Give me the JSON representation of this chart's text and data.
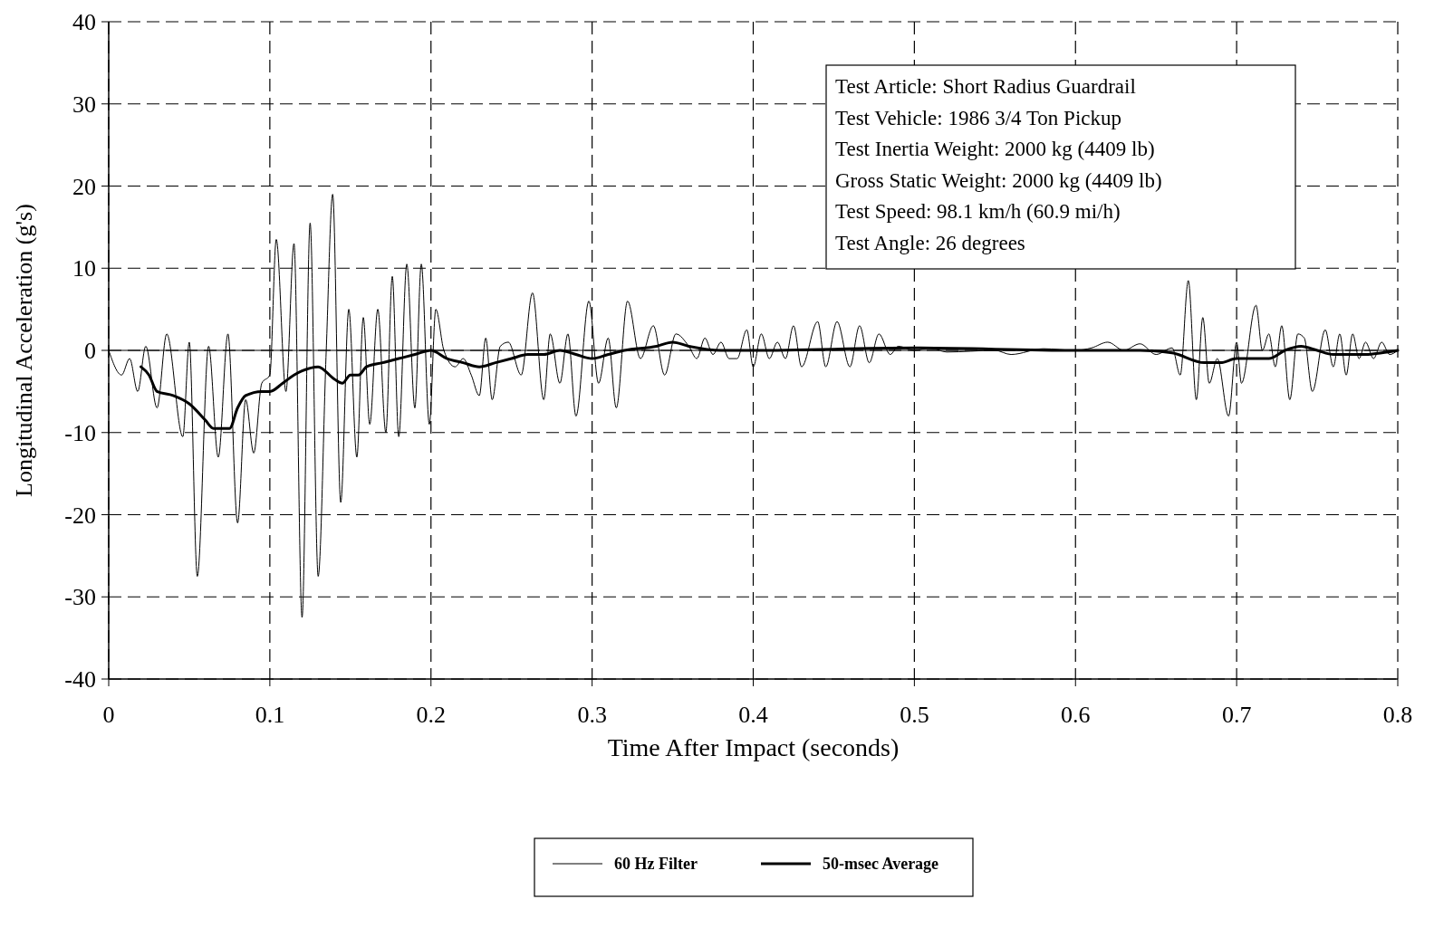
{
  "chart_data": {
    "type": "line",
    "xlabel": "Time After Impact (seconds)",
    "ylabel": "Longitudinal Acceleration (g's)",
    "xlim": [
      0,
      0.8
    ],
    "xticks": [
      0,
      0.1,
      0.2,
      0.3,
      0.4,
      0.5,
      0.6,
      0.7,
      0.8
    ],
    "ylim": [
      -40,
      40
    ],
    "yticks": [
      -40,
      -30,
      -20,
      -10,
      0,
      10,
      20,
      30,
      40
    ],
    "grid": true,
    "legend": "bottom",
    "line_style": "solid",
    "ref_lines": [
      {
        "axis": "y",
        "value": 0,
        "label": null,
        "color": "#000000",
        "line_style": "solid"
      }
    ],
    "annotations": [
      "Test Article:  Short Radius Guardrail",
      "Test Vehicle:  1986 3/4 Ton Pickup",
      "Test Inertia Weight:  2000 kg (4409 lb)",
      "Gross Static Weight:  2000 kg (4409 lb)",
      "Test Speed:  98.1 km/h (60.9 mi/h)",
      "Test Angle:  26 degrees"
    ],
    "series": [
      {
        "name": "60 Hz Filter",
        "color": "#000000",
        "x": [
          0,
          0.008,
          0.013,
          0.018,
          0.023,
          0.03,
          0.036,
          0.046,
          0.05,
          0.055,
          0.062,
          0.068,
          0.074,
          0.08,
          0.085,
          0.09,
          0.095,
          0.1,
          0.104,
          0.11,
          0.115,
          0.12,
          0.125,
          0.13,
          0.135,
          0.139,
          0.144,
          0.149,
          0.154,
          0.158,
          0.162,
          0.167,
          0.172,
          0.176,
          0.18,
          0.185,
          0.19,
          0.194,
          0.199,
          0.203,
          0.208,
          0.215,
          0.22,
          0.225,
          0.23,
          0.234,
          0.238,
          0.243,
          0.248,
          0.256,
          0.263,
          0.27,
          0.274,
          0.28,
          0.285,
          0.29,
          0.298,
          0.304,
          0.31,
          0.315,
          0.322,
          0.33,
          0.338,
          0.345,
          0.352,
          0.36,
          0.365,
          0.37,
          0.375,
          0.38,
          0.385,
          0.39,
          0.396,
          0.4,
          0.405,
          0.41,
          0.415,
          0.42,
          0.425,
          0.43,
          0.44,
          0.445,
          0.452,
          0.46,
          0.466,
          0.472,
          0.478,
          0.485,
          0.49,
          0.5,
          0.51,
          0.52,
          0.55,
          0.56,
          0.58,
          0.6,
          0.61,
          0.62,
          0.63,
          0.64,
          0.65,
          0.66,
          0.665,
          0.67,
          0.675,
          0.679,
          0.683,
          0.688,
          0.695,
          0.7,
          0.703,
          0.712,
          0.716,
          0.72,
          0.724,
          0.728,
          0.733,
          0.738,
          0.742,
          0.747,
          0.755,
          0.76,
          0.764,
          0.768,
          0.772,
          0.776,
          0.78,
          0.785,
          0.79,
          0.795,
          0.8
        ],
        "values": [
          0,
          -3,
          -1,
          -5,
          0.5,
          -7,
          2,
          -10.5,
          1,
          -27.5,
          0.5,
          -13,
          2,
          -21,
          -6,
          -12.5,
          -4,
          -3,
          13.5,
          -5,
          13,
          -32.5,
          15.5,
          -27.5,
          0,
          19,
          -18.5,
          5,
          -13,
          4,
          -9,
          5,
          -10,
          9,
          -10.5,
          10.5,
          -7,
          10.5,
          -9,
          5,
          0,
          -2,
          -1,
          -3,
          -5.5,
          1.5,
          -6,
          0.5,
          1,
          -3,
          7,
          -6,
          2,
          -4,
          2,
          -8,
          6,
          -4,
          1.5,
          -7,
          6,
          -1,
          3,
          -3,
          2,
          0.5,
          -1,
          1.5,
          -0.5,
          1,
          -1,
          -1,
          2.5,
          -2,
          2,
          -1,
          1,
          -1,
          3,
          -2,
          3.5,
          -2,
          3.5,
          -2,
          3,
          -1.5,
          2,
          -0.5,
          0.5,
          0,
          0.3,
          -0.2,
          0,
          -0.5,
          0.2,
          0,
          0.3,
          1,
          0,
          0.8,
          -0.5,
          0.3,
          -3,
          8.5,
          -6,
          4,
          -4,
          -1,
          -8,
          1,
          -4,
          5.5,
          0,
          2,
          -2,
          3,
          -6,
          2,
          1.5,
          -5,
          2.5,
          -2,
          2,
          -3,
          2,
          -1,
          1,
          -1,
          1,
          -0.5,
          0
        ]
      },
      {
        "name": "50-msec Average",
        "color": "#000000",
        "x": [
          0.02,
          0.025,
          0.03,
          0.04,
          0.05,
          0.06,
          0.065,
          0.075,
          0.08,
          0.085,
          0.095,
          0.1,
          0.108,
          0.115,
          0.12,
          0.13,
          0.14,
          0.145,
          0.15,
          0.155,
          0.16,
          0.17,
          0.18,
          0.19,
          0.2,
          0.21,
          0.22,
          0.23,
          0.24,
          0.25,
          0.26,
          0.27,
          0.28,
          0.29,
          0.3,
          0.31,
          0.32,
          0.34,
          0.35,
          0.36,
          0.38,
          0.4,
          0.5,
          0.6,
          0.64,
          0.66,
          0.68,
          0.69,
          0.7,
          0.72,
          0.73,
          0.74,
          0.75,
          0.76,
          0.77,
          0.78,
          0.79,
          0.8
        ],
        "values": [
          -2,
          -3,
          -5,
          -5.5,
          -6.5,
          -8.5,
          -9.5,
          -9.5,
          -7,
          -5.5,
          -5,
          -5,
          -4,
          -3,
          -2.5,
          -2,
          -3.5,
          -4,
          -3,
          -3,
          -2,
          -1.5,
          -1,
          -0.5,
          0,
          -1,
          -1.5,
          -2,
          -1.5,
          -1,
          -0.5,
          -0.5,
          0,
          -0.5,
          -1,
          -0.5,
          0,
          0.5,
          1,
          0.5,
          0,
          0,
          0.3,
          0,
          0,
          -0.3,
          -1.5,
          -1.5,
          -1,
          -1,
          0,
          0.5,
          0,
          -0.5,
          -0.5,
          -0.5,
          -0.3,
          0
        ]
      }
    ]
  }
}
